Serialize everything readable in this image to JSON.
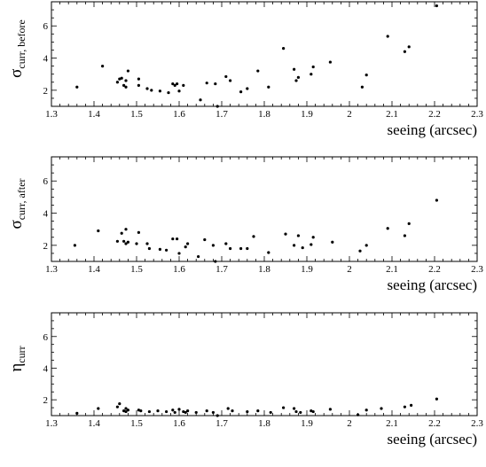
{
  "chart_data": [
    {
      "type": "scatter",
      "xlabel": "seeing (arcsec)",
      "ylabel": {
        "symbol": "σ",
        "subscript": "curr, before"
      },
      "xlim": [
        1.3,
        2.3
      ],
      "ylim": [
        1,
        7.5
      ],
      "xticks": [
        "1.3",
        "1.4",
        "1.5",
        "1.6",
        "1.7",
        "1.8",
        "1.9",
        "2",
        "2.1",
        "2.2",
        "2.3"
      ],
      "yticks": [
        "2",
        "4",
        "6"
      ],
      "ytick_values": [
        2,
        4,
        6
      ],
      "grid": false,
      "x": [
        1.36,
        1.42,
        1.455,
        1.46,
        1.465,
        1.47,
        1.475,
        1.475,
        1.48,
        1.505,
        1.505,
        1.525,
        1.535,
        1.555,
        1.575,
        1.585,
        1.59,
        1.595,
        1.6,
        1.61,
        1.65,
        1.665,
        1.685,
        1.69,
        1.71,
        1.72,
        1.745,
        1.76,
        1.785,
        1.81,
        1.845,
        1.87,
        1.875,
        1.88,
        1.91,
        1.915,
        1.955,
        2.03,
        2.04,
        2.09,
        2.13,
        2.14,
        2.205
      ],
      "y": [
        2.2,
        3.5,
        2.5,
        2.7,
        2.75,
        2.3,
        2.6,
        2.2,
        3.2,
        2.7,
        2.3,
        2.1,
        2.0,
        1.95,
        1.85,
        2.4,
        2.3,
        2.4,
        1.95,
        2.3,
        1.4,
        2.45,
        2.4,
        1.0,
        2.85,
        2.6,
        1.9,
        2.1,
        3.2,
        2.2,
        4.6,
        3.3,
        2.6,
        2.8,
        3.0,
        3.45,
        3.75,
        2.2,
        2.95,
        5.35,
        4.4,
        4.7,
        7.25
      ]
    },
    {
      "type": "scatter",
      "xlabel": "seeing (arcsec)",
      "ylabel": {
        "symbol": "σ",
        "subscript": "curr, after"
      },
      "xlim": [
        1.3,
        2.3
      ],
      "ylim": [
        1,
        7.5
      ],
      "xticks": [
        "1.3",
        "1.4",
        "1.5",
        "1.6",
        "1.7",
        "1.8",
        "1.9",
        "2",
        "2.1",
        "2.2",
        "2.3"
      ],
      "yticks": [
        "2",
        "4",
        "6"
      ],
      "ytick_values": [
        2,
        4,
        6
      ],
      "grid": false,
      "x": [
        1.355,
        1.41,
        1.455,
        1.465,
        1.47,
        1.475,
        1.475,
        1.48,
        1.5,
        1.505,
        1.525,
        1.53,
        1.555,
        1.57,
        1.585,
        1.595,
        1.6,
        1.615,
        1.62,
        1.645,
        1.66,
        1.68,
        1.685,
        1.71,
        1.72,
        1.745,
        1.76,
        1.775,
        1.81,
        1.85,
        1.87,
        1.88,
        1.89,
        1.91,
        1.915,
        1.96,
        2.025,
        2.04,
        2.09,
        2.13,
        2.14,
        2.205
      ],
      "y": [
        2.0,
        2.9,
        2.25,
        2.75,
        2.25,
        3.0,
        2.1,
        2.2,
        2.1,
        2.8,
        2.1,
        1.8,
        1.75,
        1.7,
        2.4,
        2.4,
        1.5,
        1.9,
        2.1,
        1.3,
        2.35,
        2.0,
        1.0,
        2.1,
        1.8,
        1.8,
        1.8,
        2.55,
        1.55,
        2.7,
        2.0,
        2.6,
        1.85,
        2.05,
        2.5,
        2.2,
        1.65,
        2.0,
        3.05,
        2.6,
        3.35,
        4.8
      ]
    },
    {
      "type": "scatter",
      "xlabel": "seeing (arcsec)",
      "ylabel": {
        "symbol": "η",
        "subscript": "curr"
      },
      "xlim": [
        1.3,
        2.3
      ],
      "ylim": [
        1,
        7.5
      ],
      "xticks": [
        "1.3",
        "1.4",
        "1.5",
        "1.6",
        "1.7",
        "1.8",
        "1.9",
        "2",
        "2.1",
        "2.2",
        "2.3"
      ],
      "yticks": [
        "2",
        "4",
        "6"
      ],
      "ytick_values": [
        2,
        4,
        6
      ],
      "grid": false,
      "x": [
        1.36,
        1.41,
        1.455,
        1.46,
        1.47,
        1.475,
        1.475,
        1.48,
        1.505,
        1.51,
        1.53,
        1.55,
        1.57,
        1.585,
        1.59,
        1.6,
        1.61,
        1.615,
        1.62,
        1.64,
        1.665,
        1.68,
        1.69,
        1.715,
        1.725,
        1.76,
        1.785,
        1.815,
        1.845,
        1.87,
        1.875,
        1.885,
        1.91,
        1.915,
        1.955,
        2.02,
        2.04,
        2.075,
        2.13,
        2.145,
        2.205
      ],
      "y": [
        1.15,
        1.45,
        1.55,
        1.75,
        1.3,
        1.45,
        1.25,
        1.35,
        1.35,
        1.3,
        1.25,
        1.3,
        1.25,
        1.35,
        1.2,
        1.4,
        1.25,
        1.2,
        1.3,
        1.2,
        1.3,
        1.2,
        1.0,
        1.45,
        1.3,
        1.25,
        1.3,
        1.2,
        1.5,
        1.45,
        1.25,
        1.2,
        1.3,
        1.25,
        1.4,
        1.05,
        1.35,
        1.45,
        1.55,
        1.65,
        2.05
      ]
    }
  ]
}
